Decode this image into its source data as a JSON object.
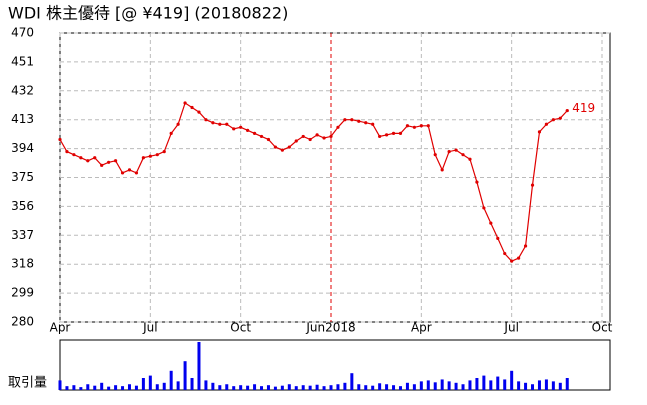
{
  "chart_data": [
    {
      "type": "line",
      "title": "WDI  株主優待  [@ ¥419] (20180822)",
      "categories": [
        "Apr",
        null,
        null,
        null,
        null,
        null,
        null,
        null,
        null,
        null,
        null,
        null,
        null,
        "Jul",
        null,
        null,
        null,
        null,
        null,
        null,
        null,
        null,
        null,
        null,
        null,
        null,
        "Oct",
        null,
        null,
        null,
        null,
        null,
        null,
        null,
        null,
        null,
        null,
        null,
        null,
        "Jun2018",
        null,
        null,
        null,
        null,
        null,
        null,
        null,
        null,
        null,
        null,
        null,
        null,
        "Apr",
        null,
        null,
        null,
        null,
        null,
        null,
        null,
        null,
        null,
        null,
        null,
        null,
        "Jul",
        null,
        null,
        null,
        null,
        null,
        null,
        null,
        null,
        null,
        null,
        null,
        null,
        "Oct"
      ],
      "series": [
        {
          "name": "WDI",
          "color": "#e00000",
          "values": [
            400,
            392,
            390,
            388,
            386,
            388,
            383,
            385,
            386,
            378,
            380,
            378,
            388,
            389,
            390,
            392,
            404,
            410,
            424,
            421,
            418,
            413,
            411,
            410,
            410,
            407,
            408,
            406,
            404,
            402,
            400,
            395,
            393,
            395,
            399,
            402,
            400,
            403,
            401,
            402,
            408,
            413,
            413,
            412,
            411,
            410,
            402,
            403,
            404,
            404,
            409,
            408,
            409,
            409,
            390,
            380,
            392,
            393,
            390,
            387,
            372,
            355,
            345,
            335,
            325,
            320,
            322,
            330,
            370,
            405,
            410,
            413,
            414,
            419,
            null,
            null,
            null,
            null,
            null
          ]
        }
      ],
      "ylim": [
        280,
        470
      ],
      "yticks": [
        280,
        299,
        318,
        337,
        356,
        375,
        394,
        413,
        432,
        451,
        470
      ],
      "grid": true
    },
    {
      "type": "bar",
      "title": "取引量",
      "color": "#0000ee",
      "ylim": [
        0,
        100
      ],
      "values": [
        20,
        8,
        10,
        6,
        12,
        9,
        15,
        7,
        10,
        8,
        12,
        9,
        25,
        30,
        12,
        15,
        40,
        18,
        60,
        25,
        100,
        20,
        15,
        10,
        12,
        8,
        10,
        9,
        12,
        8,
        10,
        7,
        9,
        12,
        8,
        10,
        9,
        11,
        8,
        10,
        12,
        15,
        35,
        12,
        10,
        9,
        14,
        12,
        10,
        8,
        15,
        12,
        18,
        20,
        16,
        22,
        18,
        15,
        12,
        20,
        25,
        30,
        20,
        28,
        22,
        40,
        18,
        15,
        12,
        20,
        22,
        18,
        15,
        25,
        null,
        null,
        null,
        null,
        null
      ]
    }
  ]
}
